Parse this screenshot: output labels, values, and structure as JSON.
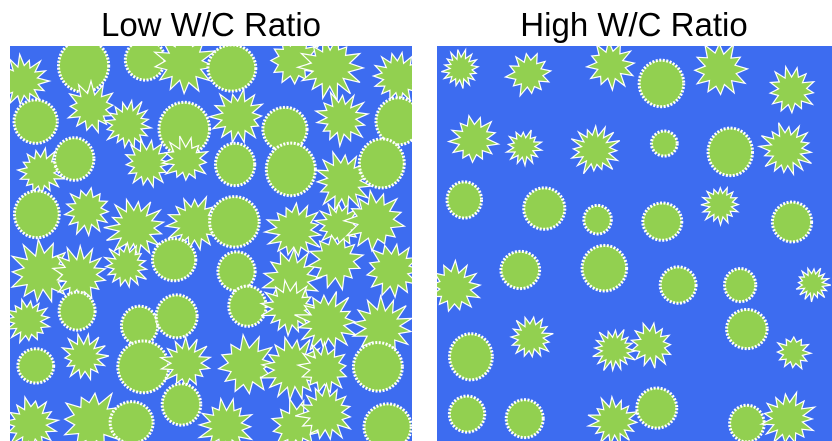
{
  "panels": [
    {
      "title": "Low W/C Ratio"
    },
    {
      "title": "High W/C Ratio"
    }
  ]
}
